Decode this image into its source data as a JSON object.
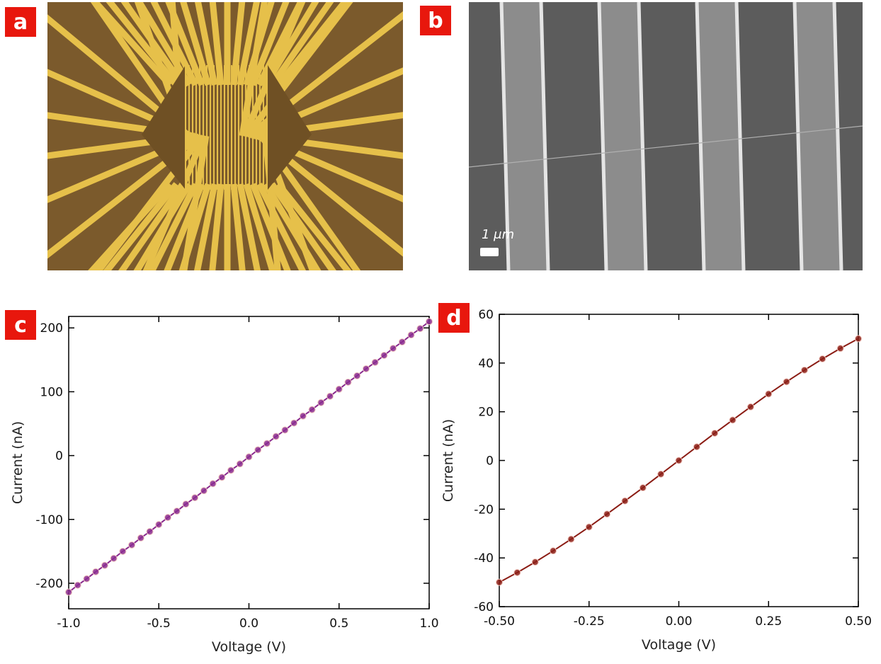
{
  "panel_labels": [
    "a",
    "b",
    "c",
    "d"
  ],
  "scale_bar_label": "1 μm",
  "chart_data": [
    {
      "type": "scatter",
      "x_label": "Voltage (V)",
      "y_label": "Current (nA)",
      "color": "#8a2a8e",
      "x": [
        -1,
        -0.95,
        -0.9,
        -0.85,
        -0.8,
        -0.75,
        -0.7,
        -0.65,
        -0.6,
        -0.55,
        -0.5,
        -0.45,
        -0.4,
        -0.35,
        -0.3,
        -0.25,
        -0.2,
        -0.15,
        -0.1,
        -0.05,
        0,
        0.05,
        0.1,
        0.15,
        0.2,
        0.25,
        0.3,
        0.35,
        0.4,
        0.45,
        0.5,
        0.55,
        0.6,
        0.65,
        0.7,
        0.75,
        0.8,
        0.85,
        0.9,
        0.95,
        1
      ],
      "values": [
        -214,
        -203,
        -193,
        -182,
        -172,
        -161,
        -150,
        -140,
        -129,
        -119,
        -108,
        -97,
        -87,
        -76,
        -66,
        -55,
        -44,
        -34,
        -23,
        -13,
        -2,
        9,
        19,
        30,
        40,
        51,
        62,
        72,
        83,
        93,
        104,
        115,
        125,
        136,
        146,
        157,
        168,
        178,
        189,
        199,
        210
      ],
      "xlim": [
        -1,
        1
      ],
      "ylim": [
        -240,
        218
      ],
      "xticks": [
        {
          "value": -1,
          "label": "-1.0"
        },
        {
          "value": -0.5,
          "label": "-0.5"
        },
        {
          "value": 0,
          "label": "0.0"
        },
        {
          "value": 0.5,
          "label": "0.5"
        },
        {
          "value": 1,
          "label": "1.0"
        }
      ],
      "yticks": [
        -200,
        -100,
        0,
        100,
        200
      ]
    },
    {
      "type": "scatter",
      "x_label": "Voltage (V)",
      "y_label": "Current (nA)",
      "color": "#8b1c14",
      "x": [
        -0.5,
        -0.45,
        -0.4,
        -0.35,
        -0.3,
        -0.25,
        -0.2,
        -0.15,
        -0.1,
        -0.05,
        0,
        0.05,
        0.1,
        0.15,
        0.2,
        0.25,
        0.3,
        0.35,
        0.4,
        0.45,
        0.5
      ],
      "values": [
        -50,
        -46,
        -41.7,
        -37.1,
        -32.3,
        -27.3,
        -22,
        -16.6,
        -11.2,
        -5.6,
        0,
        5.6,
        11.2,
        16.6,
        22,
        27.3,
        32.3,
        37.1,
        41.7,
        46,
        50
      ],
      "xlim": [
        -0.5,
        0.5
      ],
      "ylim": [
        -60,
        60
      ],
      "xticks": [
        {
          "value": -0.5,
          "label": "-0.50"
        },
        {
          "value": -0.25,
          "label": "-0.25"
        },
        {
          "value": 0,
          "label": "0.00"
        },
        {
          "value": 0.25,
          "label": "0.25"
        },
        {
          "value": 0.5,
          "label": "0.50"
        }
      ],
      "yticks": [
        -60,
        -40,
        -20,
        0,
        20,
        40,
        60
      ]
    }
  ]
}
